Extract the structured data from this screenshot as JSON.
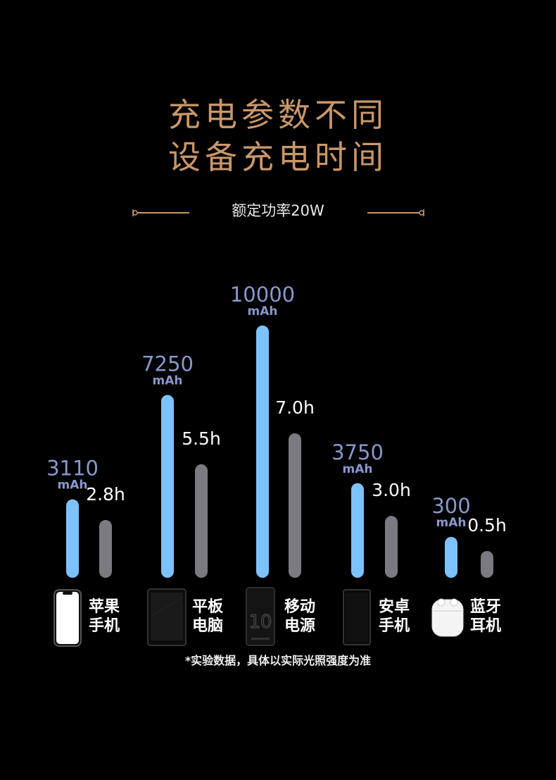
{
  "header": {
    "title_line1": "充电参数不同",
    "title_line2": "设备充电时间",
    "subtitle": "额定功率20W"
  },
  "chart_data": {
    "type": "bar",
    "categories": [
      "苹果\n手机",
      "平板\n电脑",
      "移动\n电源",
      "安卓\n手机",
      "蓝牙\n耳机"
    ],
    "series": [
      {
        "values": [
          3110,
          7250,
          10000,
          3750,
          300
        ],
        "value_labels": [
          "3110",
          "7250",
          "10000",
          "3750",
          "300"
        ],
        "unit": "mAh",
        "color": "#7cc2ff"
      },
      {
        "values": [
          2.8,
          5.5,
          7.0,
          3.0,
          0.5
        ],
        "value_labels": [
          "2.8h",
          "5.5h",
          "7.0h",
          "3.0h",
          "0.5h"
        ],
        "color": "#7b7a80"
      }
    ],
    "ylim": [
      0,
      10000
    ],
    "grid": false,
    "legend": "none"
  },
  "devices": [
    {
      "label_line1": "苹果",
      "label_line2": "手机",
      "icon": "phone-icon"
    },
    {
      "label_line1": "平板",
      "label_line2": "电脑",
      "icon": "tablet-icon"
    },
    {
      "label_line1": "移动",
      "label_line2": "电源",
      "icon": "powerbank-icon"
    },
    {
      "label_line1": "安卓",
      "label_line2": "手机",
      "icon": "android-phone-icon"
    },
    {
      "label_line1": "蓝牙",
      "label_line2": "耳机",
      "icon": "earbuds-icon"
    }
  ],
  "footnote": "*实验数据，具体以实际光照强度为准",
  "colors": {
    "title": "#c9976a",
    "capacity_bar": "#7cc2ff",
    "time_bar": "#7b7a80",
    "capacity_label": "#8898cc"
  }
}
